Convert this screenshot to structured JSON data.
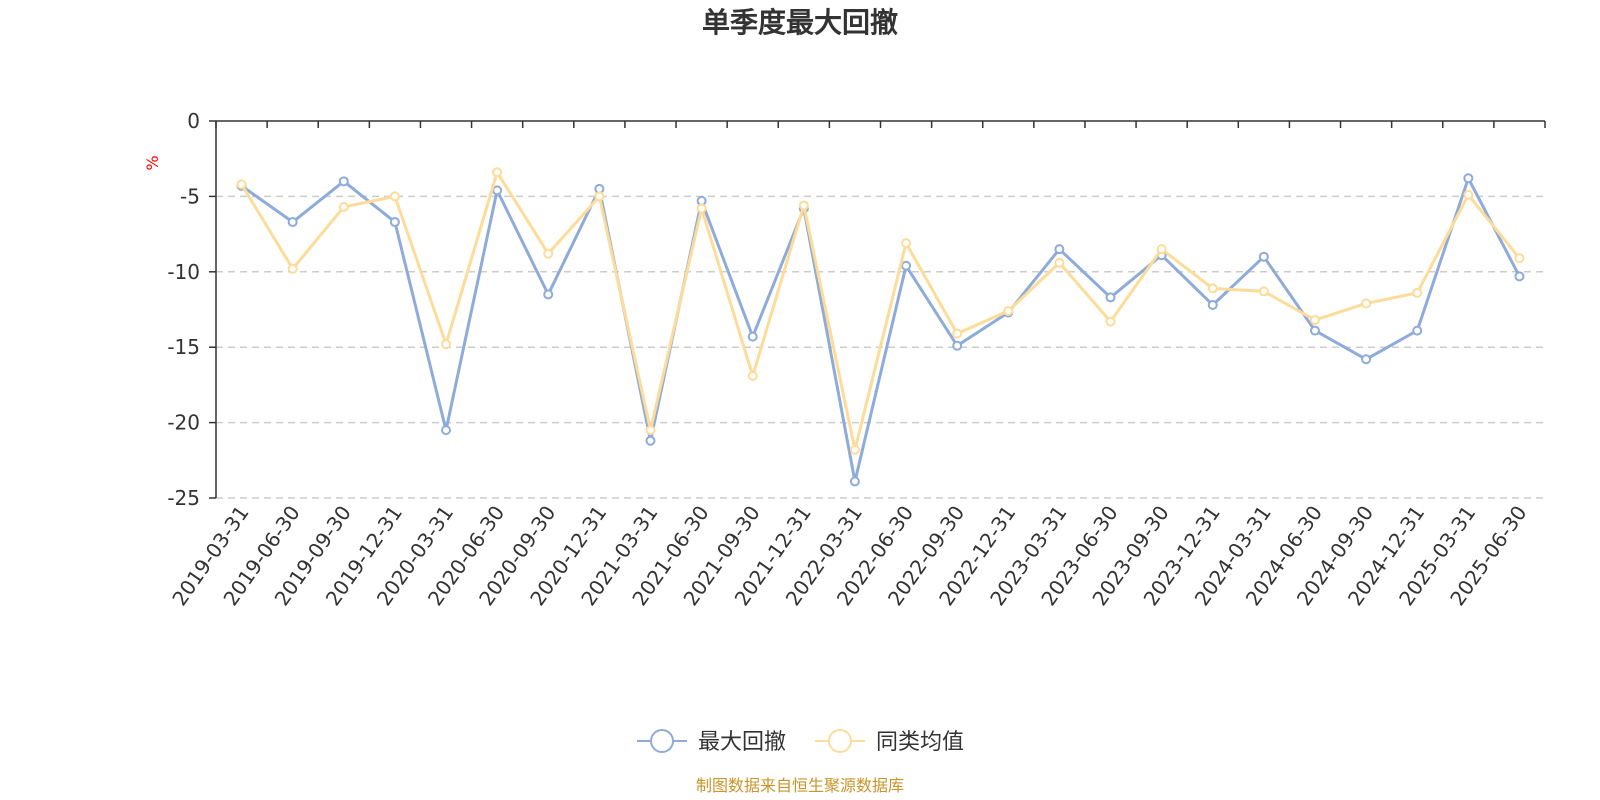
{
  "chart_data": {
    "type": "line",
    "title": "单季度最大回撤",
    "ylabel": "%",
    "xlabel": "",
    "ylim": [
      -25,
      0
    ],
    "yticks": [
      0,
      -5,
      -10,
      -15,
      -20,
      -25
    ],
    "ytick_labels": [
      "0",
      "-5",
      "-10",
      "-15",
      "-20",
      "-25"
    ],
    "grid": true,
    "legend_position": "bottom-center",
    "categories": [
      "2019-03-31",
      "2019-06-30",
      "2019-09-30",
      "2019-12-31",
      "2020-03-31",
      "2020-06-30",
      "2020-09-30",
      "2020-12-31",
      "2021-03-31",
      "2021-06-30",
      "2021-09-30",
      "2021-12-31",
      "2022-03-31",
      "2022-06-30",
      "2022-09-30",
      "2022-12-31",
      "2023-03-31",
      "2023-06-30",
      "2023-09-30",
      "2023-12-31",
      "2024-03-31",
      "2024-06-30",
      "2024-09-30",
      "2024-12-31",
      "2025-03-31",
      "2025-06-30"
    ],
    "series": [
      {
        "name": "最大回撤",
        "color": "#8eabd9",
        "values": [
          -4.3,
          -6.7,
          -4.0,
          -6.7,
          -20.5,
          -4.6,
          -11.5,
          -4.5,
          -21.2,
          -5.3,
          -14.3,
          -5.8,
          -23.9,
          -9.6,
          -14.9,
          -12.7,
          -8.5,
          -11.7,
          -8.9,
          -12.2,
          -9.0,
          -13.9,
          -15.8,
          -13.9,
          -3.8,
          -10.3
        ]
      },
      {
        "name": "同类均值",
        "color": "#fddc9a",
        "values": [
          -4.2,
          -9.8,
          -5.7,
          -5.0,
          -14.8,
          -3.4,
          -8.8,
          -5.0,
          -20.5,
          -5.8,
          -16.9,
          -5.6,
          -21.8,
          -8.1,
          -14.1,
          -12.6,
          -9.4,
          -13.3,
          -8.5,
          -11.1,
          -11.3,
          -13.2,
          -12.1,
          -11.4,
          -4.9,
          -9.1
        ]
      }
    ]
  },
  "footer": {
    "source": "制图数据来自恒生聚源数据库"
  }
}
